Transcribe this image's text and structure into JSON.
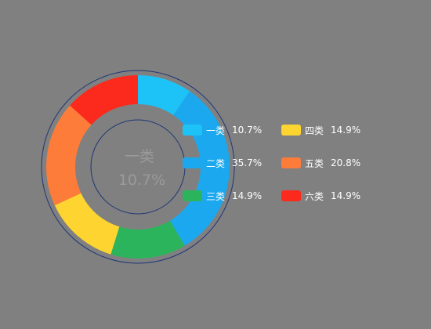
{
  "chart_data": {
    "type": "pie",
    "variant": "donut",
    "categories": [
      "一类",
      "二类",
      "三类",
      "四类",
      "五类",
      "六类"
    ],
    "values": [
      10.7,
      35.7,
      14.9,
      14.9,
      20.8,
      14.9
    ],
    "labels": [
      "10.7%",
      "35.7%",
      "14.9%",
      "14.9%",
      "20.8%",
      "14.9%"
    ],
    "colors": [
      "#1DC3F7",
      "#1BA8EF",
      "#2CB45D",
      "#FED530",
      "#FD7C3A",
      "#FC2A1C"
    ],
    "ring_color": "#1F3576",
    "center_label": {
      "name": "一类",
      "value": "10.7%",
      "color": "#9a9a9a"
    },
    "legend_placement": "right",
    "title": "",
    "grid": false
  }
}
